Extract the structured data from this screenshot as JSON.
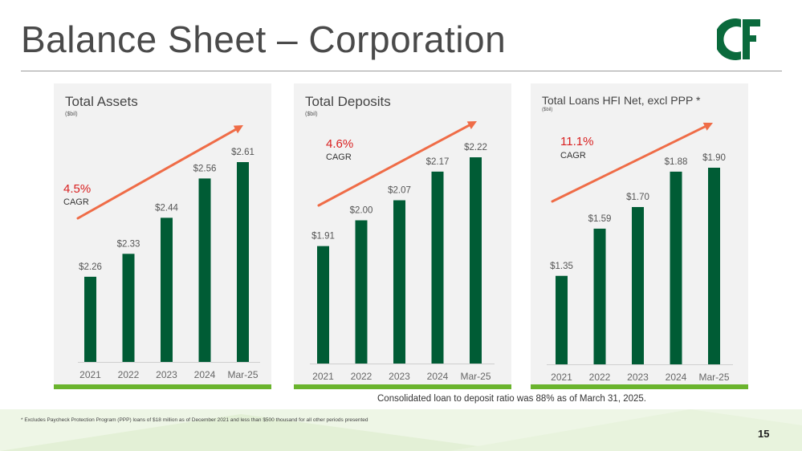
{
  "page": {
    "title": "Balance Sheet – Corporation",
    "page_number": "15",
    "ratio_note": "Consolidated loan to deposit ratio was 88% as of March 31, 2025.",
    "ppp_note": "* Excludes Paycheck Protection Program (PPP) loans of $18 million as of December 2021 and less than $500 thousand for all other periods presented",
    "logo_text": "C&F"
  },
  "colors": {
    "bar": "#005c35",
    "arrow": "#ef6c47",
    "accent_green": "#6ab42d",
    "cagr": "#d92020"
  },
  "chart_data": [
    {
      "type": "bar",
      "title": "Total Assets",
      "unit_label": "($bil)",
      "categories": [
        "2021",
        "2022",
        "2023",
        "2024",
        "Mar-25"
      ],
      "values": [
        2.26,
        2.33,
        2.44,
        2.56,
        2.61
      ],
      "value_labels": [
        "$2.26",
        "$2.33",
        "$2.44",
        "$2.56",
        "$2.61"
      ],
      "cagr_pct": "4.5%",
      "cagr_label": "CAGR",
      "ylim": [
        2.0,
        2.7
      ]
    },
    {
      "type": "bar",
      "title": "Total Deposits",
      "unit_label": "($bil)",
      "categories": [
        "2021",
        "2022",
        "2023",
        "2024",
        "Mar-25"
      ],
      "values": [
        1.91,
        2.0,
        2.07,
        2.17,
        2.22
      ],
      "value_labels": [
        "$1.91",
        "$2.00",
        "$2.07",
        "$2.17",
        "$2.22"
      ],
      "cagr_pct": "4.6%",
      "cagr_label": "CAGR",
      "ylim": [
        1.5,
        2.3
      ]
    },
    {
      "type": "bar",
      "title": "Total Loans HFI Net, excl PPP *",
      "unit_label": "($bil)",
      "categories": [
        "2021",
        "2022",
        "2023",
        "2024",
        "Mar-25"
      ],
      "values": [
        1.35,
        1.59,
        1.7,
        1.88,
        1.9
      ],
      "value_labels": [
        "$1.35",
        "$1.59",
        "$1.70",
        "$1.88",
        "$1.90"
      ],
      "cagr_pct": "11.1%",
      "cagr_label": "CAGR",
      "ylim": [
        0.9,
        2.0
      ]
    }
  ]
}
